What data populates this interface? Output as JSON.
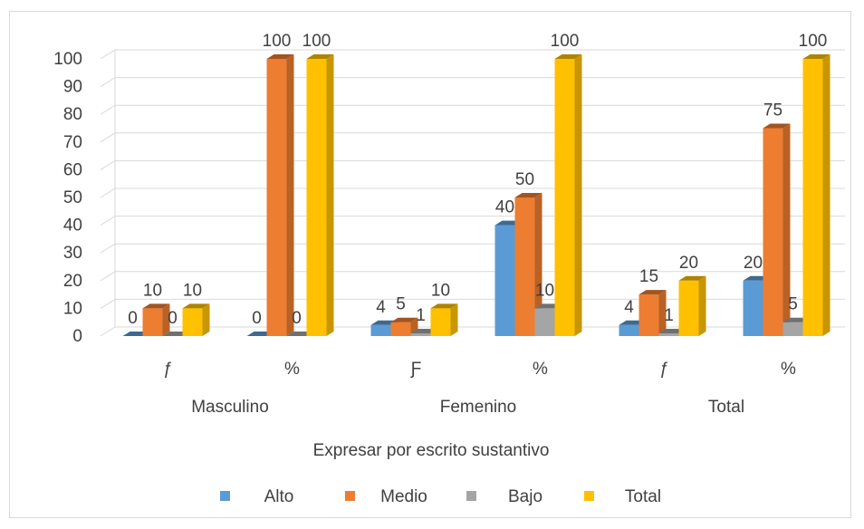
{
  "chart_data": {
    "type": "bar",
    "title": "",
    "xlabel": "Expresar por escrito sustantivo",
    "ylabel": "",
    "ylim": [
      0,
      100
    ],
    "yticks": [
      0,
      10,
      20,
      30,
      40,
      50,
      60,
      70,
      80,
      90,
      100
    ],
    "grid": true,
    "legend_position": "bottom",
    "groups": [
      "Masculino",
      "Femenino",
      "Total"
    ],
    "categories": [
      "ƒ",
      "%",
      "Ƒ",
      "%",
      "ƒ",
      "%"
    ],
    "category_group": [
      0,
      0,
      1,
      1,
      2,
      2
    ],
    "series": [
      {
        "name": "Alto",
        "color": "#5b9bd5",
        "values": [
          0,
          0,
          4,
          40,
          4,
          20
        ],
        "labels": [
          "0",
          "0",
          "4",
          "40",
          "4",
          "20"
        ]
      },
      {
        "name": "Medio",
        "color": "#ed7d31",
        "values": [
          10,
          100,
          5,
          50,
          15,
          75
        ],
        "labels": [
          "10",
          "100",
          "5",
          "50",
          "15",
          "75"
        ]
      },
      {
        "name": "Bajo",
        "color": "#a5a5a5",
        "values": [
          0,
          0,
          1,
          10,
          1,
          5
        ],
        "labels": [
          "0",
          "0",
          "1",
          "10",
          "1",
          "5"
        ]
      },
      {
        "name": "Total",
        "color": "#ffc000",
        "values": [
          10,
          100,
          10,
          100,
          20,
          100
        ],
        "labels": [
          "10",
          "100",
          "10",
          "100",
          "20",
          "100"
        ]
      }
    ]
  }
}
